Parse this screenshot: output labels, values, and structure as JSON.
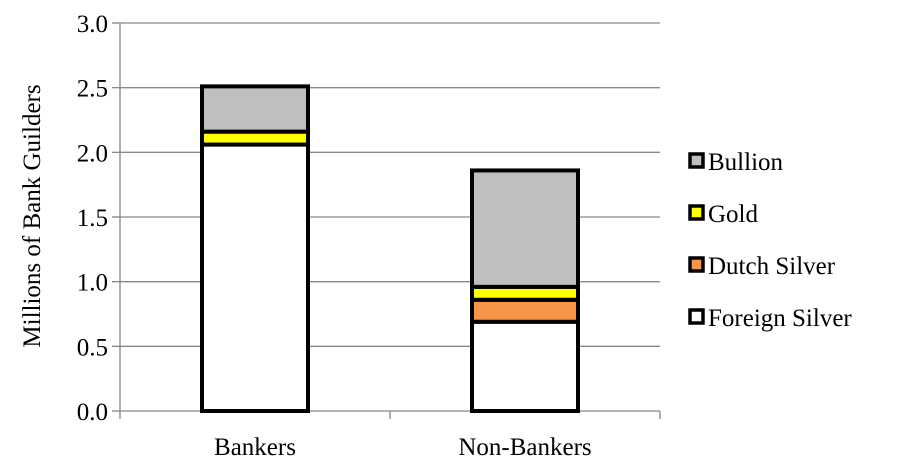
{
  "chart_data": {
    "type": "bar",
    "stacked": true,
    "title": "",
    "xlabel": "",
    "ylabel": "Millions of Bank Guilders",
    "ylim": [
      0,
      3.0
    ],
    "yticks": [
      "0.0",
      "0.5",
      "1.0",
      "1.5",
      "2.0",
      "2.5",
      "3.0"
    ],
    "categories": [
      "Bankers",
      "Non-Bankers"
    ],
    "grid": "horizontal",
    "legend_position": "right",
    "series": [
      {
        "name": "Foreign Silver",
        "color": "#ffffff",
        "values": [
          2.06,
          0.69
        ]
      },
      {
        "name": "Dutch Silver",
        "color": "#f79646",
        "values": [
          0.0,
          0.17
        ]
      },
      {
        "name": "Gold",
        "color": "#ffff00",
        "values": [
          0.1,
          0.1
        ]
      },
      {
        "name": "Bullion",
        "color": "#bfbfbf",
        "values": [
          0.35,
          0.9
        ]
      }
    ],
    "legend_order": [
      "Bullion",
      "Gold",
      "Dutch Silver",
      "Foreign Silver"
    ]
  }
}
